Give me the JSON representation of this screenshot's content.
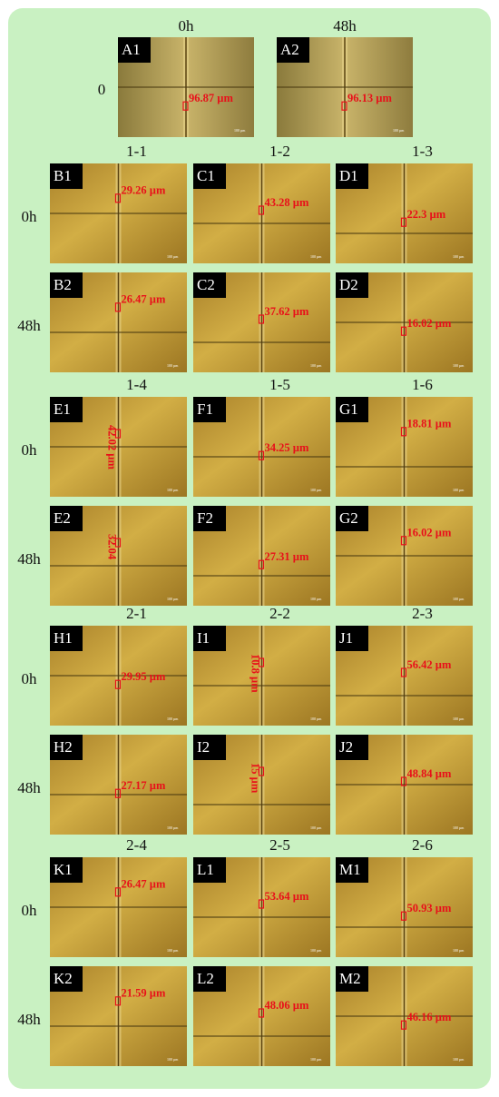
{
  "scale_bar": "100 µm",
  "top": {
    "columns": [
      "0h",
      "48h"
    ],
    "row_label": "0",
    "panels": [
      {
        "label": "A1",
        "measure": "96.87 µm"
      },
      {
        "label": "A2",
        "measure": "96.13 µm"
      }
    ]
  },
  "groups": [
    {
      "columns": [
        "1-1",
        "1-2",
        "1-3"
      ],
      "rows": [
        {
          "label": "0h",
          "panels": [
            {
              "label": "B1",
              "measure": "29.26 µm"
            },
            {
              "label": "C1",
              "measure": "43.28 µm"
            },
            {
              "label": "D1",
              "measure": "22.3 µm"
            }
          ]
        },
        {
          "label": "48h",
          "panels": [
            {
              "label": "B2",
              "measure": "26.47 µm"
            },
            {
              "label": "C2",
              "measure": "37.62 µm"
            },
            {
              "label": "D2",
              "measure": "16.02 µm"
            }
          ]
        }
      ]
    },
    {
      "columns": [
        "1-4",
        "1-5",
        "1-6"
      ],
      "rows": [
        {
          "label": "0h",
          "panels": [
            {
              "label": "E1",
              "measure": "42.02 µm"
            },
            {
              "label": "F1",
              "measure": "34.25 µm"
            },
            {
              "label": "G1",
              "measure": "18.81 µm"
            }
          ]
        },
        {
          "label": "48h",
          "panels": [
            {
              "label": "E2",
              "measure": "32.04"
            },
            {
              "label": "F2",
              "measure": "27.31 µm"
            },
            {
              "label": "G2",
              "measure": "16.02 µm"
            }
          ]
        }
      ]
    },
    {
      "columns": [
        "2-1",
        "2-2",
        "2-3"
      ],
      "rows": [
        {
          "label": "0h",
          "panels": [
            {
              "label": "H1",
              "measure": "29.95 µm"
            },
            {
              "label": "I1",
              "measure": "10.8 µm"
            },
            {
              "label": "J1",
              "measure": "56.42 µm"
            }
          ]
        },
        {
          "label": "48h",
          "panels": [
            {
              "label": "H2",
              "measure": "27.17 µm"
            },
            {
              "label": "I2",
              "measure": "15 µm"
            },
            {
              "label": "J2",
              "measure": "48.84 µm"
            }
          ]
        }
      ]
    },
    {
      "columns": [
        "2-4",
        "2-5",
        "2-6"
      ],
      "rows": [
        {
          "label": "0h",
          "panels": [
            {
              "label": "K1",
              "measure": "26.47 µm"
            },
            {
              "label": "L1",
              "measure": "53.64 µm"
            },
            {
              "label": "M1",
              "measure": "50.93 µm"
            }
          ]
        },
        {
          "label": "48h",
          "panels": [
            {
              "label": "K2",
              "measure": "21.59 µm"
            },
            {
              "label": "L2",
              "measure": "48.06 µm"
            },
            {
              "label": "M2",
              "measure": "46.16 µm"
            }
          ]
        }
      ]
    }
  ]
}
